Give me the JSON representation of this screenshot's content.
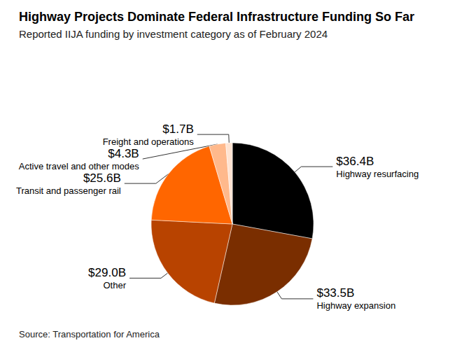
{
  "chart_data": {
    "type": "pie",
    "title": "Highway Projects Dominate Federal Infrastructure Funding So Far",
    "subtitle": "Reported IIJA funding by investment category as of February 2024",
    "source": "Source: Transportation for America",
    "categories": [
      "Highway resurfacing",
      "Highway expansion",
      "Other",
      "Transit and passenger rail",
      "Active travel and other modes",
      "Freight and operations"
    ],
    "values": [
      36.4,
      33.5,
      29.0,
      25.6,
      4.3,
      1.7
    ],
    "value_labels": [
      "$36.4B",
      "$33.5B",
      "$29.0B",
      "$25.6B",
      "$4.3B",
      "$1.7B"
    ],
    "colors": [
      "#000000",
      "#7a2e00",
      "#b84300",
      "#ff6600",
      "#ffb98c",
      "#ffe3d1"
    ],
    "data_labels": true
  }
}
